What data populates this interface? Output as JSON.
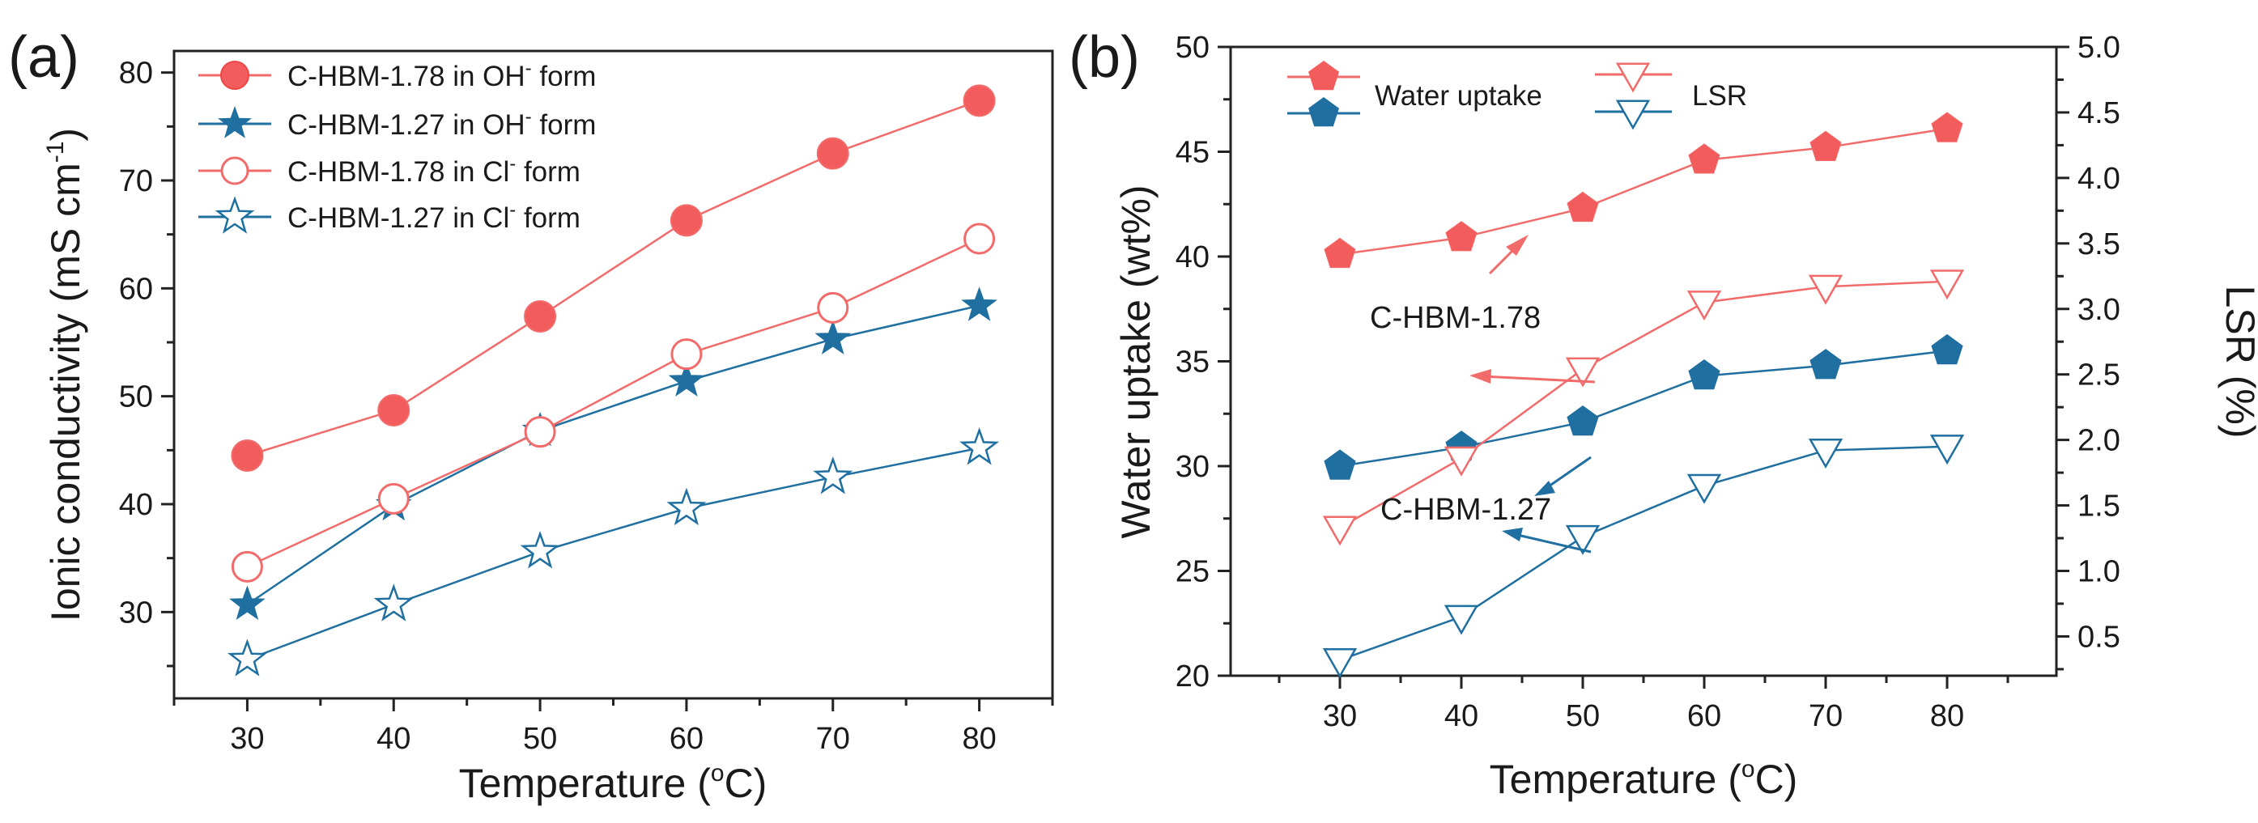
{
  "colors": {
    "red": "#f26b6b",
    "red_fill": "#f25c5c",
    "blue": "#1f6fa0",
    "axis": "#222222"
  },
  "chart_data": [
    {
      "panel": "(a)",
      "type": "line",
      "xlabel": "Temperature (",
      "xlabel_unit": "o",
      "xlabel_end": "C)",
      "ylabel": "Ionic conductivity (mS cm",
      "ylabel_sup": "-1",
      "ylabel_end": ")",
      "x": [
        30,
        40,
        50,
        60,
        70,
        80
      ],
      "xlim": [
        25,
        85
      ],
      "ylim": [
        22,
        82
      ],
      "xticks": [
        30,
        40,
        50,
        60,
        70,
        80
      ],
      "yticks": [
        30,
        40,
        50,
        60,
        70,
        80
      ],
      "legend_position": "top-left",
      "series": [
        {
          "name": "C-HBM-1.78 in OH",
          "sup": "-",
          "suffix": " form",
          "color": "red",
          "marker": "circle-filled",
          "values": [
            44.5,
            48.7,
            57.4,
            66.3,
            72.5,
            77.4
          ]
        },
        {
          "name": "C-HBM-1.27 in OH",
          "sup": "-",
          "suffix": " form",
          "color": "blue",
          "marker": "star-filled",
          "values": [
            30.7,
            39.9,
            46.8,
            51.4,
            55.3,
            58.4
          ]
        },
        {
          "name": "C-HBM-1.78 in Cl",
          "sup": "-",
          "suffix": " form",
          "color": "red",
          "marker": "circle-open",
          "values": [
            34.2,
            40.5,
            46.7,
            53.9,
            58.2,
            64.6
          ]
        },
        {
          "name": "C-HBM-1.27 in Cl",
          "sup": "-",
          "suffix": " form",
          "color": "blue",
          "marker": "star-open",
          "values": [
            25.6,
            30.7,
            35.6,
            39.6,
            42.5,
            45.2
          ]
        }
      ]
    },
    {
      "panel": "(b)",
      "type": "line",
      "xlabel": "Temperature (",
      "xlabel_unit": "o",
      "xlabel_end": "C)",
      "ylabel_left": "Water uptake (wt%)",
      "ylabel_right": "LSR (%)",
      "x": [
        30,
        40,
        50,
        60,
        70,
        80
      ],
      "xlim": [
        21,
        89
      ],
      "ylim_left": [
        20,
        50
      ],
      "ylim_right": [
        0.2,
        5.0
      ],
      "xticks": [
        30,
        40,
        50,
        60,
        70,
        80
      ],
      "yticks_left": [
        20,
        25,
        30,
        35,
        40,
        45,
        50
      ],
      "yticks_right": [
        "0.5",
        "1.0",
        "1.5",
        "2.0",
        "2.5",
        "3.0",
        "3.5",
        "4.0",
        "4.5",
        "5.0"
      ],
      "legend_position": "top-left",
      "legend": [
        "Water uptake",
        "LSR"
      ],
      "series": [
        {
          "name": "C-HBM-1.78 Water uptake",
          "axis": "left",
          "color": "red",
          "marker": "pentagon-filled",
          "values": [
            40.1,
            40.9,
            42.3,
            44.6,
            45.2,
            46.1
          ]
        },
        {
          "name": "C-HBM-1.27 Water uptake",
          "axis": "left",
          "color": "blue",
          "marker": "pentagon-filled",
          "values": [
            30.0,
            30.9,
            32.1,
            34.3,
            34.8,
            35.5
          ]
        },
        {
          "name": "C-HBM-1.78 LSR",
          "axis": "right",
          "color": "red",
          "marker": "triangle-open",
          "values": [
            1.33,
            1.86,
            2.54,
            3.05,
            3.17,
            3.21
          ]
        },
        {
          "name": "C-HBM-1.27 LSR",
          "axis": "right",
          "color": "blue",
          "marker": "triangle-open",
          "values": [
            0.32,
            0.65,
            1.26,
            1.65,
            1.92,
            1.95
          ]
        }
      ],
      "annotations": [
        "C-HBM-1.78",
        "C-HBM-1.27"
      ]
    }
  ]
}
